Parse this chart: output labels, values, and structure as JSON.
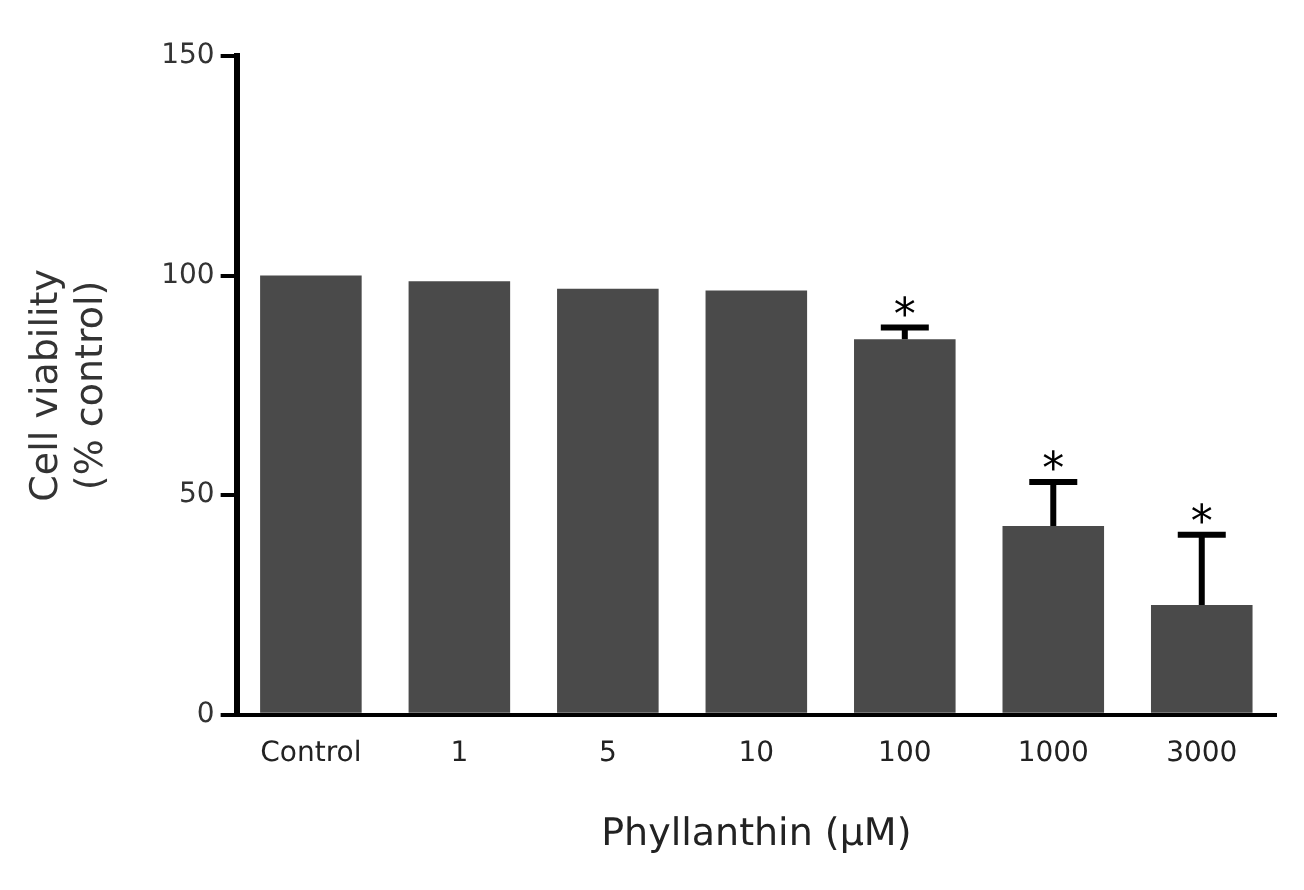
{
  "chart_data": {
    "type": "bar",
    "xlabel": "Phyllanthin (μM)",
    "ylabel": "Cell viability\n(% control)",
    "categories": [
      "Control",
      "1",
      "5",
      "10",
      "100",
      "1000",
      "3000"
    ],
    "values": [
      100,
      98.7,
      97,
      96.6,
      85.5,
      43,
      25
    ],
    "errors": [
      null,
      null,
      null,
      null,
      [
        85.5,
        88.2
      ],
      [
        43,
        53
      ],
      [
        25,
        41
      ]
    ],
    "color": "#4a4a4a",
    "ylim": [
      0,
      150
    ],
    "yticks": [
      0,
      50,
      100,
      150
    ],
    "grid": false,
    "legend": false,
    "annotations": [
      {
        "text": "*",
        "x": "100",
        "y": 88.2
      },
      {
        "text": "*",
        "x": "1000",
        "y": 53
      },
      {
        "text": "*",
        "x": "3000",
        "y": 41
      }
    ]
  }
}
